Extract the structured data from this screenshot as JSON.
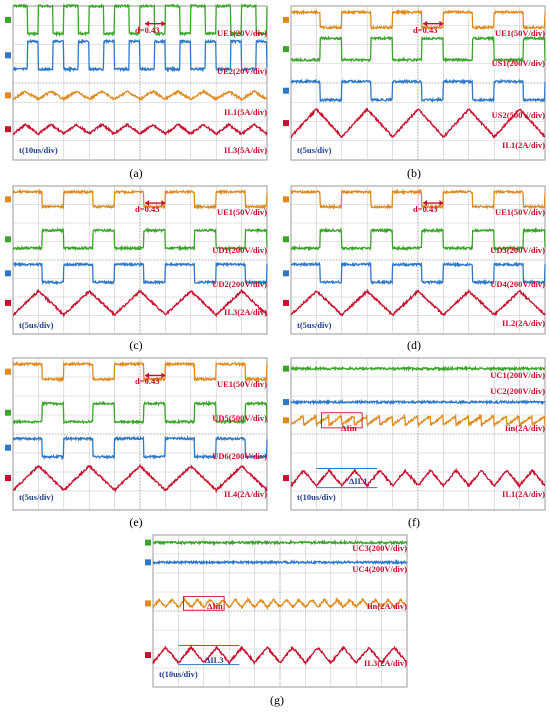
{
  "colors": {
    "green": "#3aa52a",
    "blue": "#2f78c8",
    "orange": "#e08a1e",
    "red": "#c8102e",
    "text_red": "#c8102e",
    "text_blue": "#1f3f8f",
    "grid": "#c8c8c8",
    "background": "#ffffff"
  },
  "chart_data": [
    {
      "id": "a",
      "caption": "(a)",
      "type": "line",
      "duty_annotation": "d=0.43",
      "time_label": "t(10us/div)",
      "series": [
        {
          "name": "UE1(20V/div)",
          "color": "green",
          "shape": "square",
          "offset": 0.09,
          "amplitude": 0.09,
          "periods": 10,
          "duty": 0.57
        },
        {
          "name": "UE2(20V/div)",
          "color": "blue",
          "shape": "square",
          "offset": 0.32,
          "amplitude": 0.09,
          "periods": 10,
          "duty": 0.57,
          "invert": true
        },
        {
          "name": "IL1(5A/div)",
          "color": "orange",
          "shape": "triangle",
          "offset": 0.58,
          "amplitude": 0.025,
          "periods": 10
        },
        {
          "name": "IL3(5A/div)",
          "color": "red",
          "shape": "triangle",
          "offset": 0.8,
          "amplitude": 0.03,
          "periods": 10
        }
      ]
    },
    {
      "id": "b",
      "caption": "(b)",
      "type": "line",
      "duty_annotation": "d=0.43",
      "time_label": "t(5us/div)",
      "series": [
        {
          "name": "UE1(50V/div)",
          "color": "orange",
          "shape": "square",
          "offset": 0.09,
          "amplitude": 0.05,
          "periods": 5,
          "duty": 0.57
        },
        {
          "name": "US1(200V/div)",
          "color": "green",
          "shape": "square",
          "offset": 0.28,
          "amplitude": 0.07,
          "periods": 5,
          "duty": 0.57,
          "invert": true
        },
        {
          "name": "US2(500V/div)",
          "color": "blue",
          "shape": "square",
          "offset": 0.55,
          "amplitude": 0.06,
          "periods": 5,
          "duty": 0.57
        },
        {
          "name": "IL1(2A/div)",
          "color": "red",
          "shape": "triangle",
          "offset": 0.76,
          "amplitude": 0.09,
          "periods": 5
        }
      ]
    },
    {
      "id": "c",
      "caption": "(c)",
      "type": "line",
      "duty_annotation": "d=0.43",
      "time_label": "t(5us/div)",
      "series": [
        {
          "name": "UE1(50V/div)",
          "color": "orange",
          "shape": "square",
          "offset": 0.09,
          "amplitude": 0.05,
          "periods": 5,
          "duty": 0.57
        },
        {
          "name": "UD1(200V/div)",
          "color": "green",
          "shape": "square",
          "offset": 0.36,
          "amplitude": 0.06,
          "periods": 5,
          "duty": 0.57,
          "invert": true
        },
        {
          "name": "UD2(200V/div)",
          "color": "blue",
          "shape": "square",
          "offset": 0.59,
          "amplitude": 0.06,
          "periods": 5,
          "duty": 0.57
        },
        {
          "name": "IL3(2A/div)",
          "color": "red",
          "shape": "triangle",
          "offset": 0.79,
          "amplitude": 0.08,
          "periods": 5
        }
      ]
    },
    {
      "id": "d",
      "caption": "(d)",
      "type": "line",
      "duty_annotation": "d=0.43",
      "time_label": "t(5us/div)",
      "series": [
        {
          "name": "UE1(50V/div)",
          "color": "orange",
          "shape": "square",
          "offset": 0.09,
          "amplitude": 0.05,
          "periods": 5,
          "duty": 0.57
        },
        {
          "name": "UD3(200V/div)",
          "color": "green",
          "shape": "square",
          "offset": 0.36,
          "amplitude": 0.06,
          "periods": 5,
          "duty": 0.57,
          "invert": true
        },
        {
          "name": "UD4(200V/div)",
          "color": "blue",
          "shape": "square",
          "offset": 0.59,
          "amplitude": 0.06,
          "periods": 5,
          "duty": 0.57
        },
        {
          "name": "IL2(2A/div)",
          "color": "red",
          "shape": "triangle",
          "offset": 0.79,
          "amplitude": 0.08,
          "periods": 5
        }
      ]
    },
    {
      "id": "e",
      "caption": "(e)",
      "type": "line",
      "duty_annotation": "d=0.43",
      "time_label": "t(5us/div)",
      "series": [
        {
          "name": "UE1(50V/div)",
          "color": "orange",
          "shape": "square",
          "offset": 0.09,
          "amplitude": 0.05,
          "periods": 5,
          "duty": 0.57
        },
        {
          "name": "UD5(500V/div)",
          "color": "green",
          "shape": "square",
          "offset": 0.36,
          "amplitude": 0.06,
          "periods": 5,
          "duty": 0.57,
          "invert": true
        },
        {
          "name": "UD6(200V/div)",
          "color": "blue",
          "shape": "square",
          "offset": 0.59,
          "amplitude": 0.06,
          "periods": 5,
          "duty": 0.57
        },
        {
          "name": "IL4(2A/div)",
          "color": "red",
          "shape": "triangle",
          "offset": 0.79,
          "amplitude": 0.08,
          "periods": 5
        }
      ]
    },
    {
      "id": "f",
      "caption": "(f)",
      "type": "line",
      "delta_top_label": "ΔIin",
      "delta_bottom_label": "ΔIL1",
      "time_label": "t(10us/div)",
      "series": [
        {
          "name": "UC1(200V/div)",
          "color": "green",
          "shape": "flat",
          "offset": 0.07,
          "amplitude": 0.0,
          "periods": 10
        },
        {
          "name": "UC2(200V/div)",
          "color": "blue",
          "shape": "flat",
          "offset": 0.29,
          "amplitude": 0.0,
          "periods": 10
        },
        {
          "name": "Iin(2A/div)",
          "color": "orange",
          "shape": "sawtooth",
          "offset": 0.41,
          "amplitude": 0.03,
          "periods": 20
        },
        {
          "name": "IL1(2A/div)",
          "color": "red",
          "shape": "triangle",
          "offset": 0.79,
          "amplitude": 0.05,
          "periods": 10
        }
      ]
    },
    {
      "id": "g",
      "caption": "(g)",
      "type": "line",
      "delta_top_label": "ΔIin",
      "delta_bottom_label": "ΔIL3",
      "time_label": "t(10us/div)",
      "series": [
        {
          "name": "UC3(200V/div)",
          "color": "green",
          "shape": "flat",
          "offset": 0.05,
          "amplitude": 0.0,
          "periods": 10
        },
        {
          "name": "UC4(200V/div)",
          "color": "blue",
          "shape": "flat",
          "offset": 0.18,
          "amplitude": 0.0,
          "periods": 10
        },
        {
          "name": "Iin(2A/div)",
          "color": "orange",
          "shape": "triangle",
          "offset": 0.45,
          "amplitude": 0.025,
          "periods": 20
        },
        {
          "name": "IL3(2A/div)",
          "color": "red",
          "shape": "triangle",
          "offset": 0.79,
          "amplitude": 0.05,
          "periods": 10
        }
      ]
    }
  ]
}
